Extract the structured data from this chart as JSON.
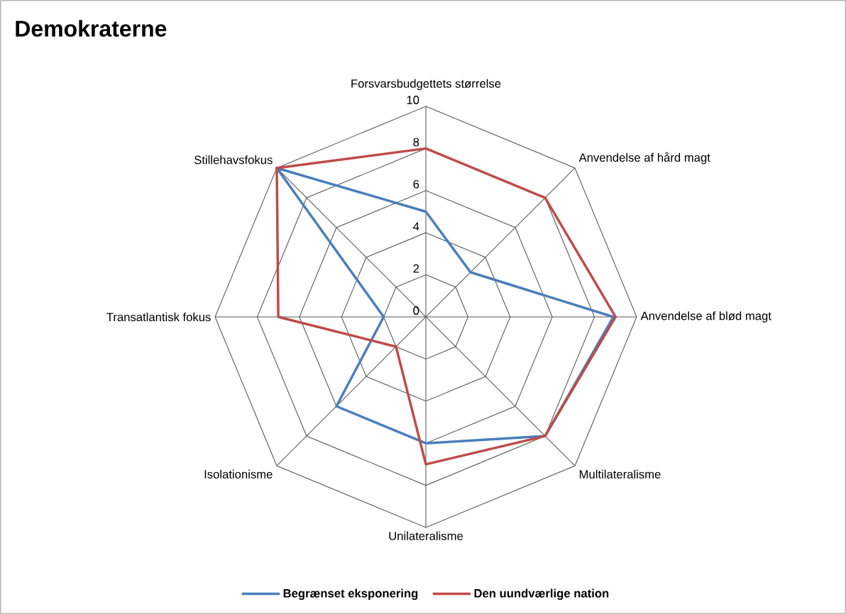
{
  "chart_data": {
    "type": "radar",
    "title": "Demokraterne",
    "categories": [
      "Forsvarsbudgettets størrelse",
      "Anvendelse af hård magt",
      "Anvendelse af blød magt",
      "Multilateralisme",
      "Unilateralisme",
      "Isolationisme",
      "Transatlantisk fokus",
      "Stillehavsfokus"
    ],
    "series": [
      {
        "name": "Begrænset eksponering",
        "color": "#4a7ebb",
        "values": [
          5,
          3,
          8.9,
          8,
          6,
          6,
          2,
          10
        ]
      },
      {
        "name": "Den uundværlige nation",
        "color": "#be4b48",
        "values": [
          8,
          8,
          9,
          8,
          7,
          2,
          7,
          10
        ]
      }
    ],
    "ylim": [
      0,
      10
    ],
    "yticks": [
      0,
      2,
      4,
      6,
      8,
      10
    ],
    "grid": true,
    "legend": "bottom",
    "marker": "none",
    "line_style": "solid"
  }
}
